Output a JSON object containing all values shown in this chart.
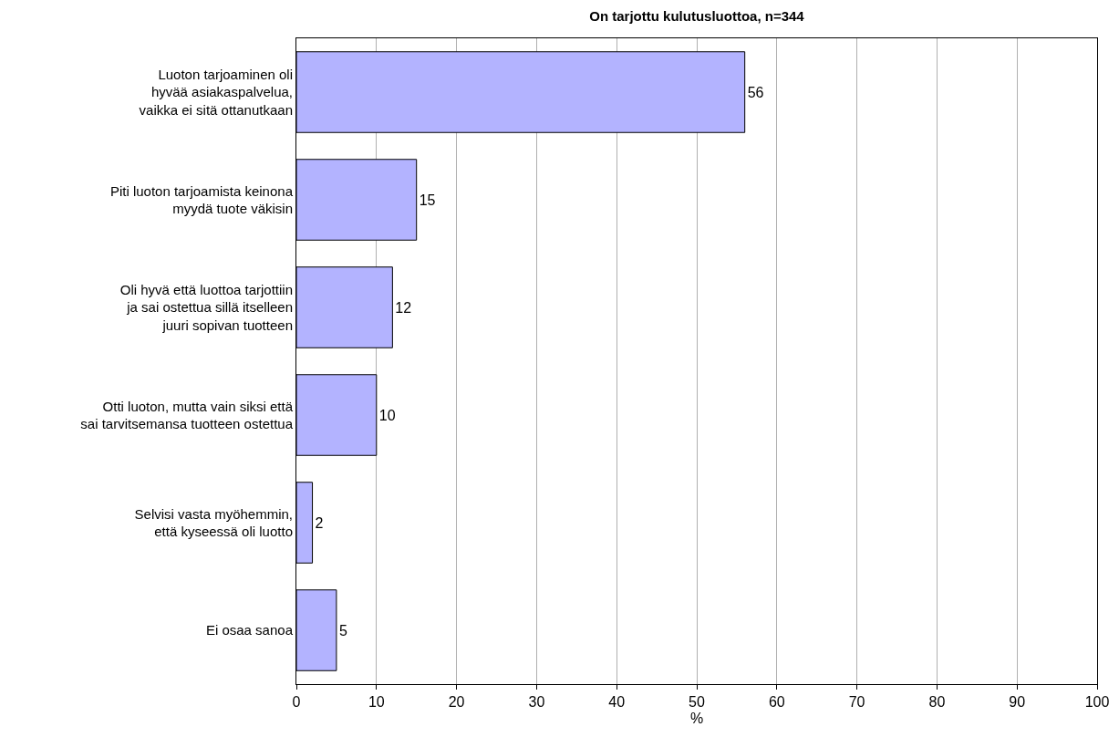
{
  "chart_data": {
    "type": "bar",
    "orientation": "horizontal",
    "title": "On tarjottu kulutusluottoa, n=344",
    "xlabel": "%",
    "categories": [
      "Luoton tarjoaminen oli\nhyvää asiakaspalvelua,\nvaikka ei sitä ottanutkaan",
      "Piti luoton tarjoamista keinona\nmyydä tuote väkisin",
      "Oli hyvä että luottoa tarjottiin\nja sai ostettua sillä itselleen\njuuri sopivan tuotteen",
      "Otti luoton, mutta vain siksi että\nsai tarvitsemansa tuotteen ostettua",
      "Selvisi vasta myöhemmin,\nettä kyseessä oli luotto",
      "Ei osaa sanoa"
    ],
    "values": [
      56,
      15,
      12,
      10,
      2,
      5
    ],
    "color": "#b3b3ff",
    "xlim": [
      0,
      100
    ],
    "xticks": [
      0,
      10,
      20,
      30,
      40,
      50,
      60,
      70,
      80,
      90,
      100
    ],
    "grid": "x",
    "data_labels": true
  }
}
